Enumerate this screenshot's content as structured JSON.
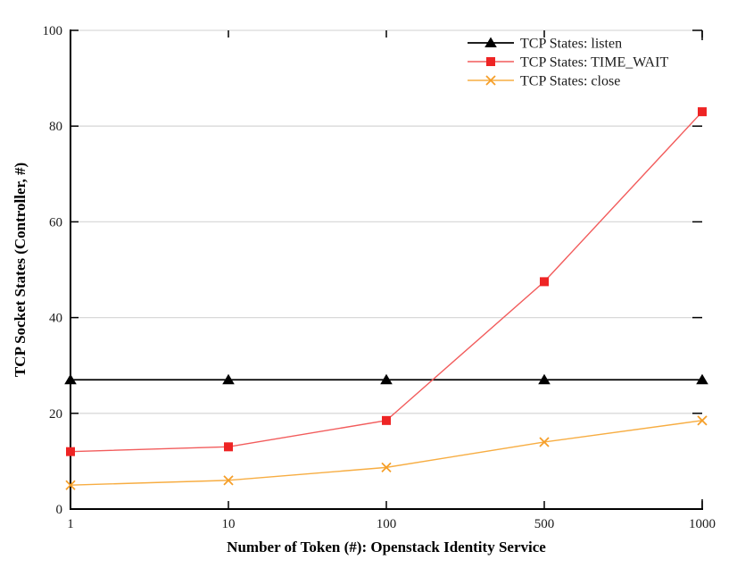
{
  "chart_data": {
    "type": "line",
    "title": "",
    "xlabel": "Number of Token (#): Openstack Identity Service",
    "ylabel": "TCP Socket States (Controller, #)",
    "categories": [
      "1",
      "10",
      "100",
      "500",
      "1000"
    ],
    "series": [
      {
        "name": "TCP States: listen",
        "marker": "triangle",
        "marker_color": "#000000",
        "line_color": "#000000",
        "values": [
          27,
          27,
          27,
          27,
          27
        ]
      },
      {
        "name": "TCP States: TIME_WAIT",
        "marker": "square",
        "marker_color": "#ee2424",
        "line_color": "#f25c5c",
        "values": [
          12,
          13,
          18.5,
          47.5,
          83
        ]
      },
      {
        "name": "TCP States: close",
        "marker": "x",
        "marker_color": "#f59e28",
        "line_color": "#f7ad42",
        "values": [
          5,
          6,
          8.7,
          14,
          18.5
        ]
      }
    ],
    "ylim": [
      0,
      100
    ],
    "yticks": [
      0,
      20,
      40,
      60,
      80,
      100
    ],
    "grid": true,
    "legend_position": "top-center-inside",
    "colors": {
      "background": "#ffffff",
      "grid": "#d9d9d9",
      "axis": "#000000"
    }
  }
}
